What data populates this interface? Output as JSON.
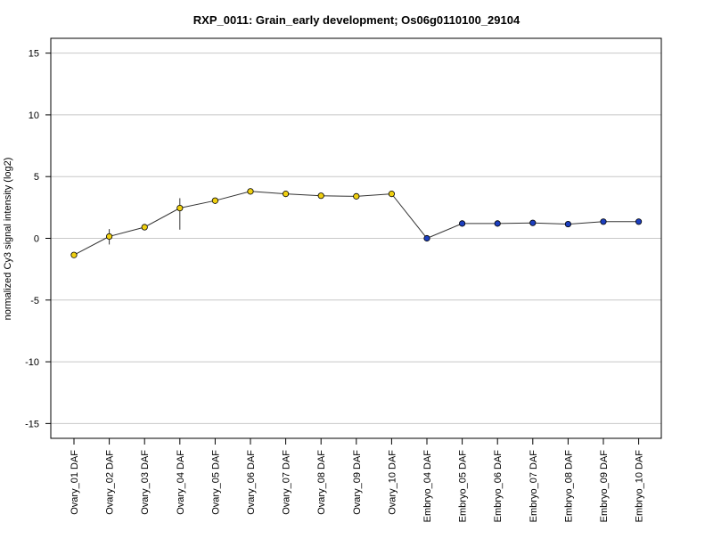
{
  "chart_data": {
    "type": "line",
    "title": "RXP_0011: Grain_early development; Os06g0110100_29104",
    "xlabel": "",
    "ylabel": "normalized Cy3 signal intensity (log2)",
    "ylim": [
      -16.2,
      16.2
    ],
    "yticks": [
      15,
      10,
      5,
      0,
      -5,
      -10,
      -15
    ],
    "ytick_labels": [
      "15",
      "10",
      "5",
      "0",
      "-5",
      "-10",
      "-15"
    ],
    "grid": true,
    "categories": [
      "Ovary_01 DAF",
      "Ovary_02 DAF",
      "Ovary_03 DAF",
      "Ovary_04 DAF",
      "Ovary_05 DAF",
      "Ovary_06 DAF",
      "Ovary_07 DAF",
      "Ovary_08 DAF",
      "Ovary_09 DAF",
      "Ovary_10 DAF",
      "Embryo_04 DAF",
      "Embryo_05 DAF",
      "Embryo_06 DAF",
      "Embryo_07 DAF",
      "Embryo_08 DAF",
      "Embryo_09 DAF",
      "Embryo_10 DAF"
    ],
    "values": [
      -1.35,
      0.15,
      0.9,
      2.45,
      3.05,
      3.8,
      3.6,
      3.45,
      3.4,
      3.6,
      0.0,
      1.2,
      1.2,
      1.25,
      1.15,
      1.35,
      1.35
    ],
    "error_low": [
      -1.35,
      -0.5,
      0.9,
      0.7,
      3.05,
      3.8,
      3.6,
      3.45,
      3.4,
      3.6,
      0.0,
      1.2,
      1.2,
      1.25,
      1.15,
      1.35,
      1.35
    ],
    "error_high": [
      -1.35,
      0.75,
      0.9,
      3.25,
      3.05,
      3.8,
      3.6,
      3.45,
      3.4,
      3.6,
      0.0,
      1.2,
      1.2,
      1.25,
      1.15,
      1.35,
      1.35
    ],
    "point_colors": [
      "#f0d010",
      "#f0d010",
      "#f0d010",
      "#f0d010",
      "#f0d010",
      "#f0d010",
      "#f0d010",
      "#f0d010",
      "#f0d010",
      "#f0d010",
      "#1c3fbf",
      "#1c3fbf",
      "#1c3fbf",
      "#1c3fbf",
      "#1c3fbf",
      "#1c3fbf",
      "#1c3fbf"
    ],
    "line_color": "#333333",
    "grid_color": "#c8c8c8"
  }
}
